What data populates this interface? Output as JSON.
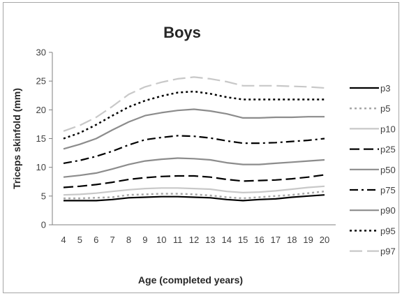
{
  "chart_data": {
    "type": "line",
    "title": "Boys",
    "xlabel": "Age (completed years)",
    "ylabel": "Triceps skinfold (mm)",
    "x": [
      4,
      5,
      6,
      7,
      8,
      9,
      10,
      11,
      12,
      13,
      14,
      15,
      16,
      17,
      18,
      19,
      20
    ],
    "xlim": [
      4,
      20
    ],
    "ylim": [
      0,
      30
    ],
    "yticks": [
      0,
      5,
      10,
      15,
      20,
      25,
      30
    ],
    "grid": false,
    "legend": "right",
    "series": [
      {
        "name": "p3",
        "color": "#000000",
        "dash": "solid",
        "values": [
          4.2,
          4.2,
          4.2,
          4.4,
          4.7,
          4.8,
          4.9,
          4.9,
          4.8,
          4.7,
          4.4,
          4.2,
          4.4,
          4.5,
          4.8,
          5.0,
          5.2
        ]
      },
      {
        "name": "p5",
        "color": "#a6a6a6",
        "dash": "dot",
        "values": [
          4.6,
          4.6,
          4.7,
          4.8,
          5.2,
          5.3,
          5.4,
          5.4,
          5.3,
          5.1,
          4.8,
          4.6,
          4.8,
          5.0,
          5.2,
          5.5,
          5.8
        ]
      },
      {
        "name": "p10",
        "color": "#c8c8c8",
        "dash": "solid",
        "values": [
          5.2,
          5.3,
          5.5,
          5.8,
          6.1,
          6.3,
          6.4,
          6.4,
          6.3,
          6.2,
          5.8,
          5.6,
          5.7,
          5.9,
          6.2,
          6.5,
          6.7
        ]
      },
      {
        "name": "p25",
        "color": "#000000",
        "dash": "dash",
        "values": [
          6.5,
          6.7,
          7.0,
          7.4,
          7.9,
          8.2,
          8.4,
          8.5,
          8.5,
          8.3,
          7.9,
          7.6,
          7.7,
          7.8,
          8.0,
          8.3,
          8.7
        ]
      },
      {
        "name": "p50",
        "color": "#8c8c8c",
        "dash": "solid",
        "values": [
          8.3,
          8.6,
          9.0,
          9.7,
          10.5,
          11.1,
          11.4,
          11.6,
          11.5,
          11.3,
          10.8,
          10.5,
          10.5,
          10.7,
          10.9,
          11.1,
          11.3
        ]
      },
      {
        "name": "p75",
        "color": "#000000",
        "dash": "dashdot",
        "values": [
          10.7,
          11.2,
          11.9,
          12.8,
          13.9,
          14.8,
          15.2,
          15.5,
          15.4,
          15.1,
          14.6,
          14.2,
          14.2,
          14.3,
          14.5,
          14.7,
          15.0
        ]
      },
      {
        "name": "p90",
        "color": "#8c8c8c",
        "dash": "solid",
        "values": [
          13.2,
          14.0,
          15.0,
          16.5,
          17.9,
          19.0,
          19.5,
          19.9,
          20.1,
          19.8,
          19.3,
          18.6,
          18.6,
          18.7,
          18.7,
          18.8,
          18.8
        ]
      },
      {
        "name": "p95",
        "color": "#000000",
        "dash": "dot",
        "values": [
          15.0,
          16.0,
          17.4,
          19.0,
          20.5,
          21.6,
          22.4,
          23.0,
          23.2,
          22.8,
          22.2,
          21.8,
          21.8,
          21.8,
          21.8,
          21.8,
          21.8
        ]
      },
      {
        "name": "p97",
        "color": "#c8c8c8",
        "dash": "longdash",
        "values": [
          16.3,
          17.3,
          18.7,
          20.6,
          22.7,
          24.0,
          24.8,
          25.4,
          25.7,
          25.4,
          24.9,
          24.2,
          24.2,
          24.2,
          24.1,
          24.0,
          23.8
        ]
      }
    ]
  }
}
